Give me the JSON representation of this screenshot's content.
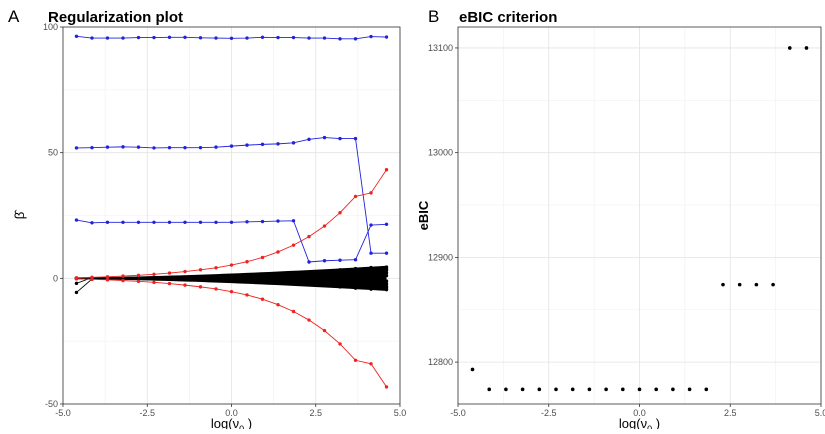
{
  "chart_data": [
    {
      "type": "line",
      "panel_letter": "A",
      "title": "Regularization plot",
      "xlabel": "log(ν",
      "xlabel_sub": "0",
      "xlabel_close": " )",
      "ylabel": "β̂",
      "xlim": [
        -5.0,
        5.0
      ],
      "ylim": [
        -50,
        100
      ],
      "xticks": [
        -5.0,
        -2.5,
        0.0,
        2.5,
        5.0
      ],
      "xtick_labels": [
        "-5.0",
        "-2.5",
        "0.0",
        "2.5",
        "5.0"
      ],
      "yticks": [
        -50,
        0,
        50,
        100
      ],
      "ytick_labels": [
        "-50",
        "0",
        "50",
        "100"
      ],
      "grid": true,
      "x": [
        -4.6,
        -4.14,
        -3.68,
        -3.22,
        -2.76,
        -2.3,
        -1.84,
        -1.38,
        -0.92,
        -0.46,
        0.0,
        0.46,
        0.92,
        1.38,
        1.84,
        2.3,
        2.76,
        3.22,
        3.68,
        4.14,
        4.6
      ],
      "colors": {
        "blue": "#2222dd",
        "red": "#ee2222",
        "black": "#000000"
      },
      "series": [
        {
          "color": "blue",
          "values": [
            96.3,
            95.6,
            95.6,
            95.6,
            95.8,
            95.8,
            95.9,
            95.9,
            95.7,
            95.6,
            95.5,
            95.6,
            95.9,
            95.8,
            95.8,
            95.6,
            95.6,
            95.3,
            95.3,
            96.2,
            96.0
          ]
        },
        {
          "color": "blue",
          "values": [
            51.9,
            52.0,
            52.2,
            52.3,
            52.2,
            51.9,
            52.0,
            52.0,
            52.0,
            52.2,
            52.6,
            53.0,
            53.3,
            53.5,
            53.9,
            55.3,
            56.0,
            55.6,
            55.6,
            10.0,
            10.0
          ]
        },
        {
          "color": "blue",
          "values": [
            23.2,
            22.1,
            22.3,
            22.3,
            22.3,
            22.3,
            22.3,
            22.3,
            22.3,
            22.3,
            22.3,
            22.5,
            22.6,
            22.8,
            22.9,
            6.5,
            7.0,
            7.2,
            7.4,
            21.2,
            21.5
          ]
        },
        {
          "color": "red",
          "values": [
            0.2,
            0.4,
            0.6,
            0.9,
            1.2,
            1.6,
            2.1,
            2.7,
            3.4,
            4.2,
            5.3,
            6.6,
            8.3,
            10.5,
            13.2,
            16.6,
            20.8,
            26.1,
            32.6,
            34.0,
            43.2
          ]
        },
        {
          "color": "red",
          "values": [
            -0.2,
            -0.4,
            -0.6,
            -0.9,
            -1.2,
            -1.6,
            -2.1,
            -2.7,
            -3.4,
            -4.2,
            -5.3,
            -6.6,
            -8.3,
            -10.5,
            -13.2,
            -16.6,
            -20.8,
            -26.1,
            -32.6,
            -34.0,
            -43.2
          ]
        },
        {
          "color": "black",
          "values": [
            -5.6,
            -0.3,
            -0.2,
            -0.1,
            0.0,
            0.0,
            0.0,
            0.1,
            0.1,
            0.2,
            0.3,
            0.5,
            0.7,
            1.0,
            1.5,
            2.0,
            2.5,
            3.0,
            3.5,
            4.0,
            4.5
          ]
        },
        {
          "color": "black",
          "values": [
            -2.0,
            0.3,
            0.2,
            0.1,
            0.0,
            0.0,
            0.0,
            -0.1,
            -0.1,
            -0.2,
            -0.3,
            -0.5,
            -0.7,
            -1.0,
            -1.5,
            -2.0,
            -2.5,
            -3.0,
            -3.5,
            -4.0,
            -4.5
          ]
        },
        {
          "color": "black",
          "values": [
            0.0,
            0.1,
            0.1,
            0.1,
            0.2,
            0.2,
            0.2,
            0.3,
            0.4,
            0.5,
            0.6,
            0.8,
            1.0,
            1.3,
            1.7,
            2.2,
            2.8,
            3.4,
            3.9,
            4.3,
            3.8
          ]
        },
        {
          "color": "black",
          "values": [
            0.0,
            -0.1,
            -0.1,
            -0.1,
            -0.2,
            -0.2,
            -0.2,
            -0.3,
            -0.4,
            -0.5,
            -0.6,
            -0.8,
            -1.0,
            -1.3,
            -1.7,
            -2.2,
            -2.8,
            -3.4,
            -3.9,
            -4.3,
            -3.8
          ]
        },
        {
          "color": "black",
          "values": [
            0.1,
            0.0,
            0.1,
            0.0,
            0.1,
            0.1,
            0.2,
            0.2,
            0.3,
            0.4,
            0.5,
            0.6,
            0.8,
            1.0,
            1.2,
            1.5,
            1.8,
            2.2,
            2.5,
            2.8,
            3.2
          ]
        },
        {
          "color": "black",
          "values": [
            -0.1,
            0.0,
            -0.1,
            0.0,
            -0.1,
            -0.1,
            -0.2,
            -0.2,
            -0.3,
            -0.4,
            -0.5,
            -0.6,
            -0.8,
            -1.0,
            -1.2,
            -1.5,
            -1.8,
            -2.2,
            -2.5,
            -2.8,
            -3.2
          ]
        },
        {
          "color": "black",
          "values": [
            0.0,
            0.0,
            0.0,
            0.1,
            0.1,
            0.1,
            0.1,
            0.2,
            0.2,
            0.3,
            0.3,
            0.4,
            0.5,
            0.6,
            0.8,
            1.0,
            1.2,
            1.4,
            1.7,
            2.0,
            2.2
          ]
        },
        {
          "color": "black",
          "values": [
            0.0,
            0.0,
            0.0,
            -0.1,
            -0.1,
            -0.1,
            -0.1,
            -0.2,
            -0.2,
            -0.3,
            -0.3,
            -0.4,
            -0.5,
            -0.6,
            -0.8,
            -1.0,
            -1.2,
            -1.4,
            -1.7,
            -2.0,
            -2.2
          ]
        },
        {
          "color": "black",
          "values": [
            0.0,
            0.0,
            0.0,
            0.0,
            0.0,
            0.1,
            0.1,
            0.1,
            0.1,
            0.1,
            0.2,
            0.2,
            0.3,
            0.3,
            0.4,
            0.5,
            0.6,
            0.7,
            0.9,
            1.0,
            1.1
          ]
        },
        {
          "color": "black",
          "values": [
            0.0,
            0.0,
            0.0,
            0.0,
            0.0,
            -0.1,
            -0.1,
            -0.1,
            -0.1,
            -0.1,
            -0.2,
            -0.2,
            -0.3,
            -0.3,
            -0.4,
            -0.5,
            -0.6,
            -0.7,
            -0.9,
            -1.0,
            -1.1
          ]
        }
      ]
    },
    {
      "type": "scatter",
      "panel_letter": "B",
      "title": "eBIC criterion",
      "xlabel": "log(ν",
      "xlabel_sub": "0",
      "xlabel_close": " )",
      "ylabel": "eBIC",
      "xlim": [
        -5.0,
        5.0
      ],
      "ylim": [
        12760,
        13120
      ],
      "xticks": [
        -5.0,
        -2.5,
        0.0,
        2.5,
        5.0
      ],
      "xtick_labels": [
        "-5.0",
        "-2.5",
        "0.0",
        "2.5",
        "5.0"
      ],
      "yticks": [
        12800,
        12900,
        13000,
        13100
      ],
      "ytick_labels": [
        "12800",
        "12900",
        "13000",
        "13100"
      ],
      "grid": true,
      "x": [
        -4.6,
        -4.14,
        -3.68,
        -3.22,
        -2.76,
        -2.3,
        -1.84,
        -1.38,
        -0.92,
        -0.46,
        0.0,
        0.46,
        0.92,
        1.38,
        1.84,
        2.3,
        2.76,
        3.22,
        3.68,
        4.14,
        4.6
      ],
      "y": [
        12793,
        12774,
        12774,
        12774,
        12774,
        12774,
        12774,
        12774,
        12774,
        12774,
        12774,
        12774,
        12774,
        12774,
        12774,
        12874,
        12874,
        12874,
        12874,
        13100,
        13100
      ]
    }
  ]
}
